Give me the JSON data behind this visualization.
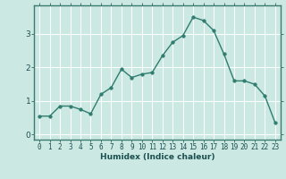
{
  "x": [
    0,
    1,
    2,
    3,
    4,
    5,
    6,
    7,
    8,
    9,
    10,
    11,
    12,
    13,
    14,
    15,
    16,
    17,
    18,
    19,
    20,
    21,
    22,
    23
  ],
  "y": [
    0.55,
    0.55,
    0.85,
    0.85,
    0.75,
    0.62,
    1.2,
    1.4,
    1.95,
    1.7,
    1.8,
    1.85,
    2.35,
    2.75,
    2.95,
    3.5,
    3.4,
    3.1,
    2.4,
    1.6,
    1.6,
    1.5,
    1.15,
    0.35
  ],
  "xlabel": "Humidex (Indice chaleur)",
  "yticks": [
    0,
    1,
    2,
    3
  ],
  "xlim": [
    -0.5,
    23.5
  ],
  "ylim": [
    -0.15,
    3.85
  ],
  "line_color": "#2e7d6e",
  "marker_color": "#2e7d6e",
  "bg_color": "#cce8e3",
  "grid_color": "#ffffff",
  "border_color": "#3d7a72",
  "tick_color": "#2e6060",
  "label_color": "#1a4f4f",
  "font_size": 7
}
